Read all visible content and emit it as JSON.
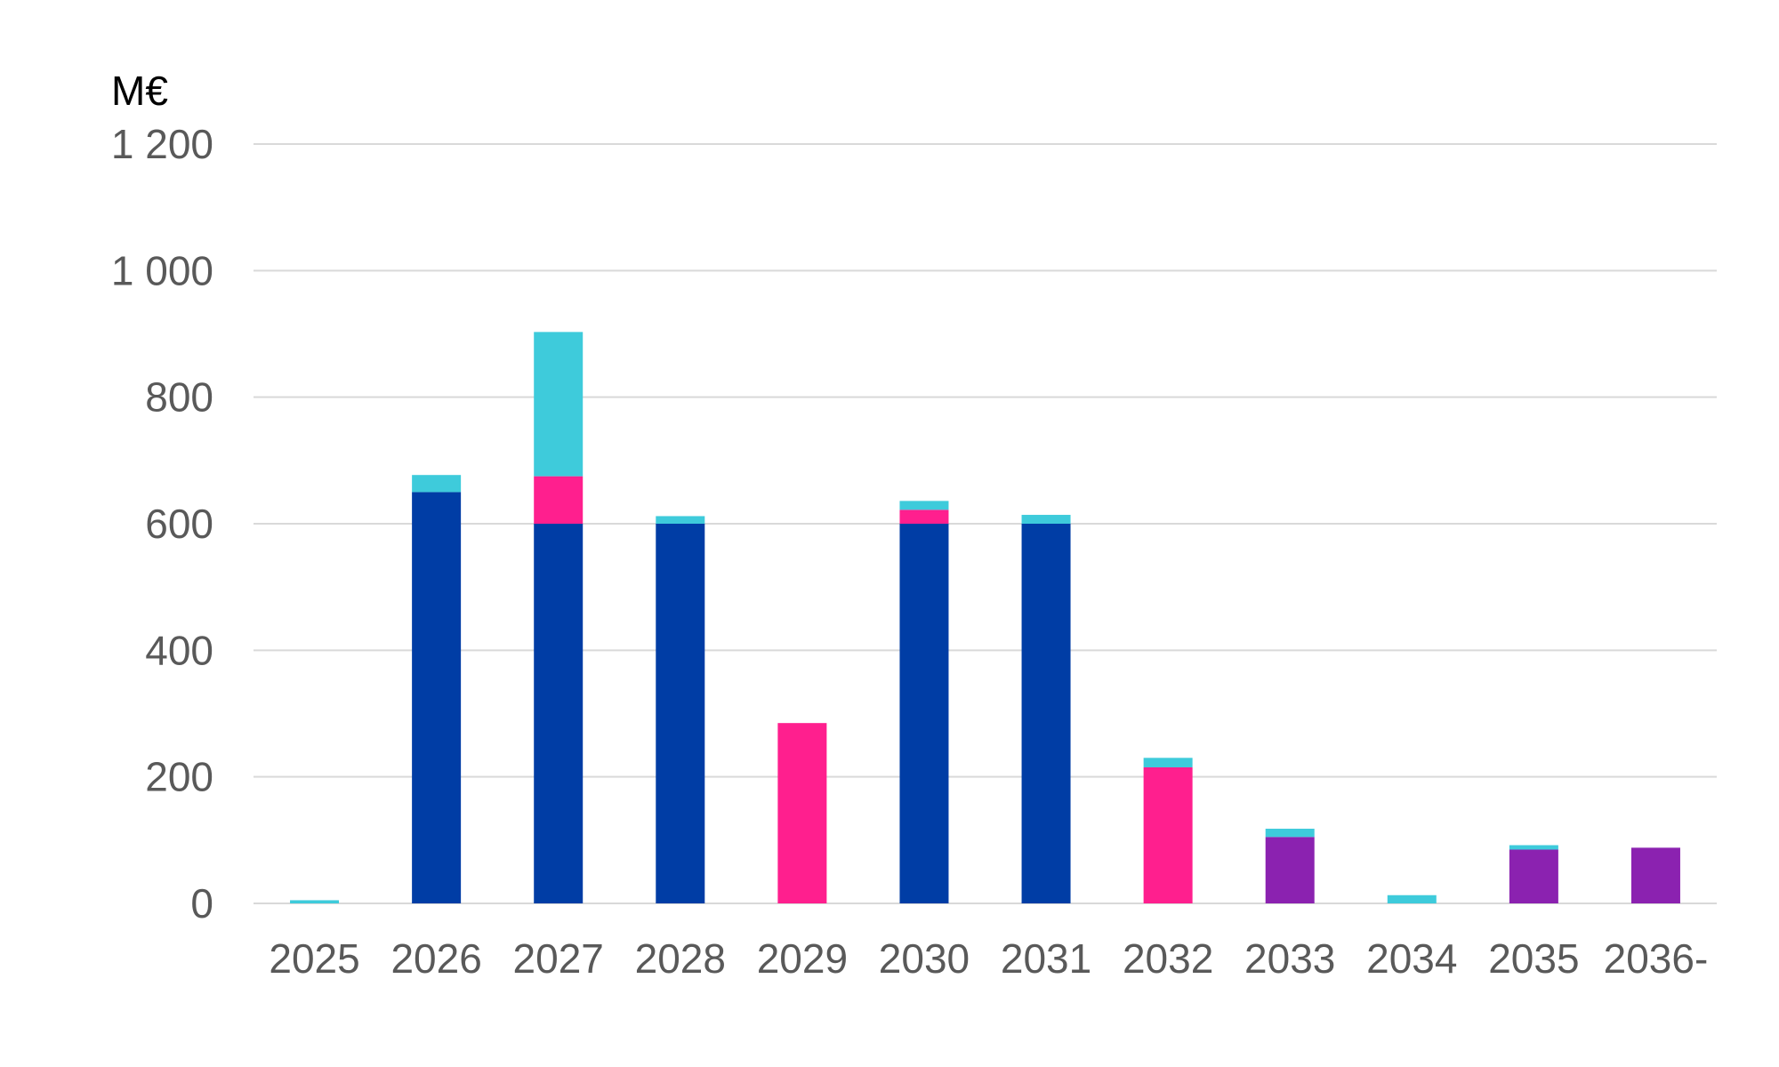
{
  "chart_data": {
    "type": "bar",
    "stacked": true,
    "unit_label": "M€",
    "categories": [
      "2025",
      "2026",
      "2027",
      "2028",
      "2029",
      "2030",
      "2031",
      "2032",
      "2033",
      "2034",
      "2035",
      "2036-"
    ],
    "ylim": [
      0,
      1200
    ],
    "yticks": [
      0,
      200,
      400,
      600,
      800,
      1000,
      1200
    ],
    "ytick_labels": [
      "0",
      "200",
      "400",
      "600",
      "800",
      "1 000",
      "1 200"
    ],
    "grid": true,
    "legend": "none",
    "series": [
      {
        "color": "#003DA5",
        "values": [
          0,
          650,
          600,
          600,
          0,
          600,
          600,
          0,
          0,
          0,
          0,
          0
        ]
      },
      {
        "color": "#FF1F8E",
        "values": [
          0,
          0,
          75,
          0,
          285,
          22,
          0,
          215,
          0,
          0,
          0,
          0
        ]
      },
      {
        "color": "#8B22B0",
        "values": [
          0,
          0,
          0,
          0,
          0,
          0,
          0,
          0,
          105,
          0,
          85,
          88
        ]
      },
      {
        "color": "#3ECBDB",
        "values": [
          5,
          27,
          228,
          12,
          0,
          14,
          14,
          15,
          13,
          13,
          7,
          0
        ]
      }
    ]
  }
}
